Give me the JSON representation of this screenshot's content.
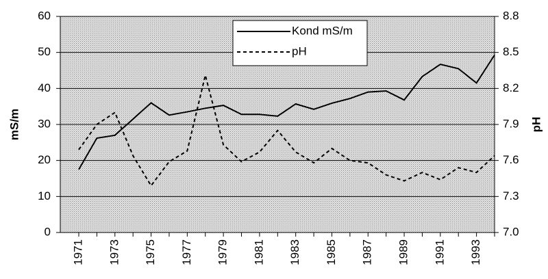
{
  "chart_data": {
    "type": "line",
    "categories": [
      "1971",
      null,
      "1973",
      null,
      "1975",
      null,
      "1977",
      null,
      "1979",
      null,
      "1981",
      null,
      "1983",
      null,
      "1985",
      null,
      "1987",
      null,
      "1989",
      null,
      "1991",
      null,
      "1993",
      null
    ],
    "series": [
      {
        "name": "Kond mS/m",
        "color": "#000000",
        "dash": "solid",
        "axis": "y",
        "values": [
          17.5,
          26.2,
          27,
          31.5,
          36,
          32.6,
          33.5,
          34.5,
          35.3,
          32.8,
          32.8,
          32.3,
          35.7,
          34.2,
          35.9,
          37.2,
          39,
          39.3,
          36.8,
          43.3,
          46.7,
          45.5,
          41.5,
          49.3
        ]
      },
      {
        "name": "pH",
        "color": "#000000",
        "dash": "dotted",
        "axis": "y2",
        "values": [
          7.69,
          7.9,
          8.0,
          7.64,
          7.39,
          7.59,
          7.68,
          8.31,
          7.73,
          7.59,
          7.67,
          7.85,
          7.67,
          7.58,
          7.7,
          7.6,
          7.58,
          7.48,
          7.43,
          7.5,
          7.44,
          7.54,
          7.5,
          7.64
        ]
      }
    ],
    "ylabel": "mS/m",
    "y2label": "pH",
    "ylim": [
      0,
      60
    ],
    "yticks": [
      0,
      10,
      20,
      30,
      40,
      50,
      60
    ],
    "y2lim": [
      7.0,
      8.8
    ],
    "y2ticks": [
      {
        "value": 7.0,
        "label": "7.0"
      },
      7.3,
      7.6,
      7.9,
      8.2,
      8.5,
      8.8
    ],
    "grid": true,
    "legend": "top"
  }
}
